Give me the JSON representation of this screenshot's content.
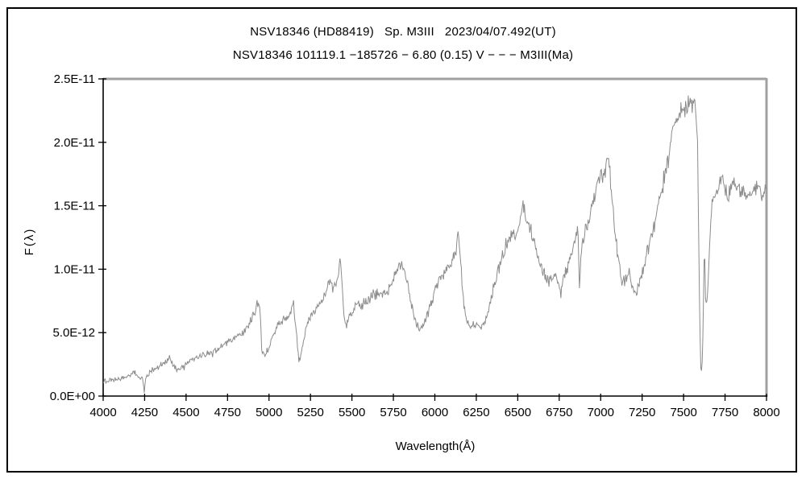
{
  "titles": {
    "line1": "NSV18346 (HD88419)   Sp. M3III   2023/04/07.492(UT)",
    "line2": "NSV18346 101119.1 −185726 − 6.80 (0.15) V − − − M3III(Ma)"
  },
  "chart_data": {
    "type": "line",
    "title": "NSV18346 (HD88419)   Sp. M3III   2023/04/07.492(UT)",
    "subtitle": "NSV18346 101119.1 −185726 − 6.80 (0.15) V − − − M3III(Ma)",
    "xlabel": "Wavelength(Å)",
    "ylabel": "F(λ)",
    "xlim": [
      4000,
      8000
    ],
    "ylim": [
      0,
      2.5e-11
    ],
    "grid": false,
    "legend": null,
    "x_ticks": [
      4000,
      4250,
      4500,
      4750,
      5000,
      5250,
      5500,
      5750,
      6000,
      6250,
      6500,
      6750,
      7000,
      7250,
      7500,
      7750,
      8000
    ],
    "y_ticks": [
      {
        "value": 0.0,
        "label": "0.0E+00"
      },
      {
        "value": 5e-12,
        "label": "5.0E-12"
      },
      {
        "value": 1e-11,
        "label": "1.0E-11"
      },
      {
        "value": 1.5e-11,
        "label": "1.5E-11"
      },
      {
        "value": 2e-11,
        "label": "2.0E-11"
      },
      {
        "value": 2.5e-11,
        "label": "2.5E-11"
      }
    ],
    "colors": {
      "line": "#8c8c8c",
      "axis": "#000000",
      "frame_gray": "#a0a0a0"
    },
    "flux_unit_scale": 1e-12,
    "noise": {
      "seed": 20230407,
      "base": 0.26,
      "flux_fraction": 0.05,
      "sample_step_A": 4
    },
    "series": [
      {
        "name": "NSV18346 spectrum",
        "points_unit": "[wavelength_A, flux_in_1e-12]",
        "points": [
          [
            4000,
            1.1
          ],
          [
            4040,
            1.2
          ],
          [
            4080,
            1.25
          ],
          [
            4120,
            1.45
          ],
          [
            4160,
            1.6
          ],
          [
            4185,
            1.9
          ],
          [
            4210,
            1.5
          ],
          [
            4235,
            1.4
          ],
          [
            4248,
            0.4
          ],
          [
            4258,
            1.5
          ],
          [
            4290,
            1.9
          ],
          [
            4320,
            2.1
          ],
          [
            4350,
            2.5
          ],
          [
            4380,
            2.8
          ],
          [
            4405,
            2.9
          ],
          [
            4430,
            2.2
          ],
          [
            4455,
            2.1
          ],
          [
            4480,
            2.3
          ],
          [
            4510,
            2.7
          ],
          [
            4540,
            2.9
          ],
          [
            4570,
            3.1
          ],
          [
            4600,
            3.2
          ],
          [
            4630,
            3.3
          ],
          [
            4660,
            3.4
          ],
          [
            4690,
            3.7
          ],
          [
            4720,
            4.0
          ],
          [
            4750,
            4.3
          ],
          [
            4780,
            4.5
          ],
          [
            4810,
            4.7
          ],
          [
            4840,
            5.0
          ],
          [
            4870,
            5.5
          ],
          [
            4900,
            6.3
          ],
          [
            4930,
            7.2
          ],
          [
            4945,
            7.0
          ],
          [
            4958,
            3.4
          ],
          [
            4975,
            3.2
          ],
          [
            5000,
            3.9
          ],
          [
            5030,
            5.0
          ],
          [
            5060,
            5.8
          ],
          [
            5090,
            6.0
          ],
          [
            5120,
            6.1
          ],
          [
            5148,
            7.3
          ],
          [
            5165,
            5.0
          ],
          [
            5180,
            2.7
          ],
          [
            5200,
            3.8
          ],
          [
            5225,
            5.5
          ],
          [
            5250,
            6.3
          ],
          [
            5280,
            6.8
          ],
          [
            5310,
            7.2
          ],
          [
            5340,
            8.0
          ],
          [
            5362,
            9.2
          ],
          [
            5385,
            8.6
          ],
          [
            5410,
            9.0
          ],
          [
            5432,
            10.7
          ],
          [
            5448,
            7.0
          ],
          [
            5462,
            5.5
          ],
          [
            5480,
            6.2
          ],
          [
            5505,
            6.7
          ],
          [
            5530,
            7.2
          ],
          [
            5555,
            7.0
          ],
          [
            5580,
            7.3
          ],
          [
            5605,
            7.6
          ],
          [
            5630,
            7.9
          ],
          [
            5655,
            8.1
          ],
          [
            5680,
            7.9
          ],
          [
            5705,
            8.1
          ],
          [
            5730,
            8.6
          ],
          [
            5755,
            9.3
          ],
          [
            5780,
            10.2
          ],
          [
            5805,
            10.3
          ],
          [
            5830,
            9.2
          ],
          [
            5855,
            7.6
          ],
          [
            5880,
            5.9
          ],
          [
            5905,
            5.3
          ],
          [
            5930,
            5.6
          ],
          [
            5955,
            6.3
          ],
          [
            5980,
            7.4
          ],
          [
            6005,
            8.5
          ],
          [
            6030,
            9.2
          ],
          [
            6055,
            9.7
          ],
          [
            6080,
            10.1
          ],
          [
            6105,
            10.6
          ],
          [
            6125,
            11.1
          ],
          [
            6140,
            13.0
          ],
          [
            6152,
            11.0
          ],
          [
            6168,
            8.2
          ],
          [
            6185,
            6.3
          ],
          [
            6205,
            5.6
          ],
          [
            6230,
            5.5
          ],
          [
            6255,
            5.7
          ],
          [
            6280,
            5.4
          ],
          [
            6305,
            6.0
          ],
          [
            6330,
            7.0
          ],
          [
            6355,
            8.5
          ],
          [
            6380,
            9.8
          ],
          [
            6405,
            11.0
          ],
          [
            6430,
            11.8
          ],
          [
            6455,
            12.4
          ],
          [
            6480,
            12.9
          ],
          [
            6505,
            13.4
          ],
          [
            6530,
            15.0
          ],
          [
            6550,
            14.0
          ],
          [
            6572,
            13.4
          ],
          [
            6595,
            12.3
          ],
          [
            6618,
            11.0
          ],
          [
            6640,
            10.2
          ],
          [
            6662,
            9.6
          ],
          [
            6685,
            9.1
          ],
          [
            6708,
            9.3
          ],
          [
            6730,
            9.4
          ],
          [
            6748,
            8.9
          ],
          [
            6760,
            7.8
          ],
          [
            6775,
            9.4
          ],
          [
            6800,
            10.3
          ],
          [
            6825,
            11.2
          ],
          [
            6850,
            12.5
          ],
          [
            6862,
            13.3
          ],
          [
            6872,
            8.2
          ],
          [
            6882,
            11.5
          ],
          [
            6900,
            12.8
          ],
          [
            6925,
            13.8
          ],
          [
            6950,
            15.0
          ],
          [
            6975,
            16.7
          ],
          [
            7000,
            17.3
          ],
          [
            7020,
            17.8
          ],
          [
            7045,
            18.8
          ],
          [
            7060,
            17.0
          ],
          [
            7080,
            14.0
          ],
          [
            7105,
            11.1
          ],
          [
            7130,
            8.6
          ],
          [
            7150,
            9.3
          ],
          [
            7172,
            9.8
          ],
          [
            7195,
            8.3
          ],
          [
            7218,
            8.1
          ],
          [
            7240,
            9.0
          ],
          [
            7262,
            10.3
          ],
          [
            7285,
            11.5
          ],
          [
            7308,
            12.6
          ],
          [
            7330,
            13.8
          ],
          [
            7352,
            15.2
          ],
          [
            7375,
            16.6
          ],
          [
            7398,
            18.2
          ],
          [
            7420,
            20.0
          ],
          [
            7442,
            21.3
          ],
          [
            7465,
            22.0
          ],
          [
            7488,
            22.3
          ],
          [
            7510,
            22.8
          ],
          [
            7532,
            23.2
          ],
          [
            7552,
            23.1
          ],
          [
            7570,
            22.8
          ],
          [
            7585,
            20.0
          ],
          [
            7595,
            8.0
          ],
          [
            7603,
            2.2
          ],
          [
            7610,
            1.8
          ],
          [
            7618,
            5.5
          ],
          [
            7626,
            12.3
          ],
          [
            7634,
            6.8
          ],
          [
            7642,
            7.5
          ],
          [
            7652,
            10.3
          ],
          [
            7662,
            13.8
          ],
          [
            7675,
            15.2
          ],
          [
            7690,
            15.8
          ],
          [
            7710,
            16.4
          ],
          [
            7730,
            17.4
          ],
          [
            7748,
            16.6
          ],
          [
            7765,
            15.6
          ],
          [
            7782,
            16.5
          ],
          [
            7800,
            17.0
          ],
          [
            7818,
            16.9
          ],
          [
            7836,
            16.3
          ],
          [
            7854,
            16.0
          ],
          [
            7872,
            15.9
          ],
          [
            7890,
            15.3
          ],
          [
            7908,
            15.9
          ],
          [
            7926,
            16.3
          ],
          [
            7944,
            16.4
          ],
          [
            7962,
            16.0
          ],
          [
            7980,
            15.9
          ],
          [
            8000,
            16.6
          ]
        ]
      }
    ]
  }
}
